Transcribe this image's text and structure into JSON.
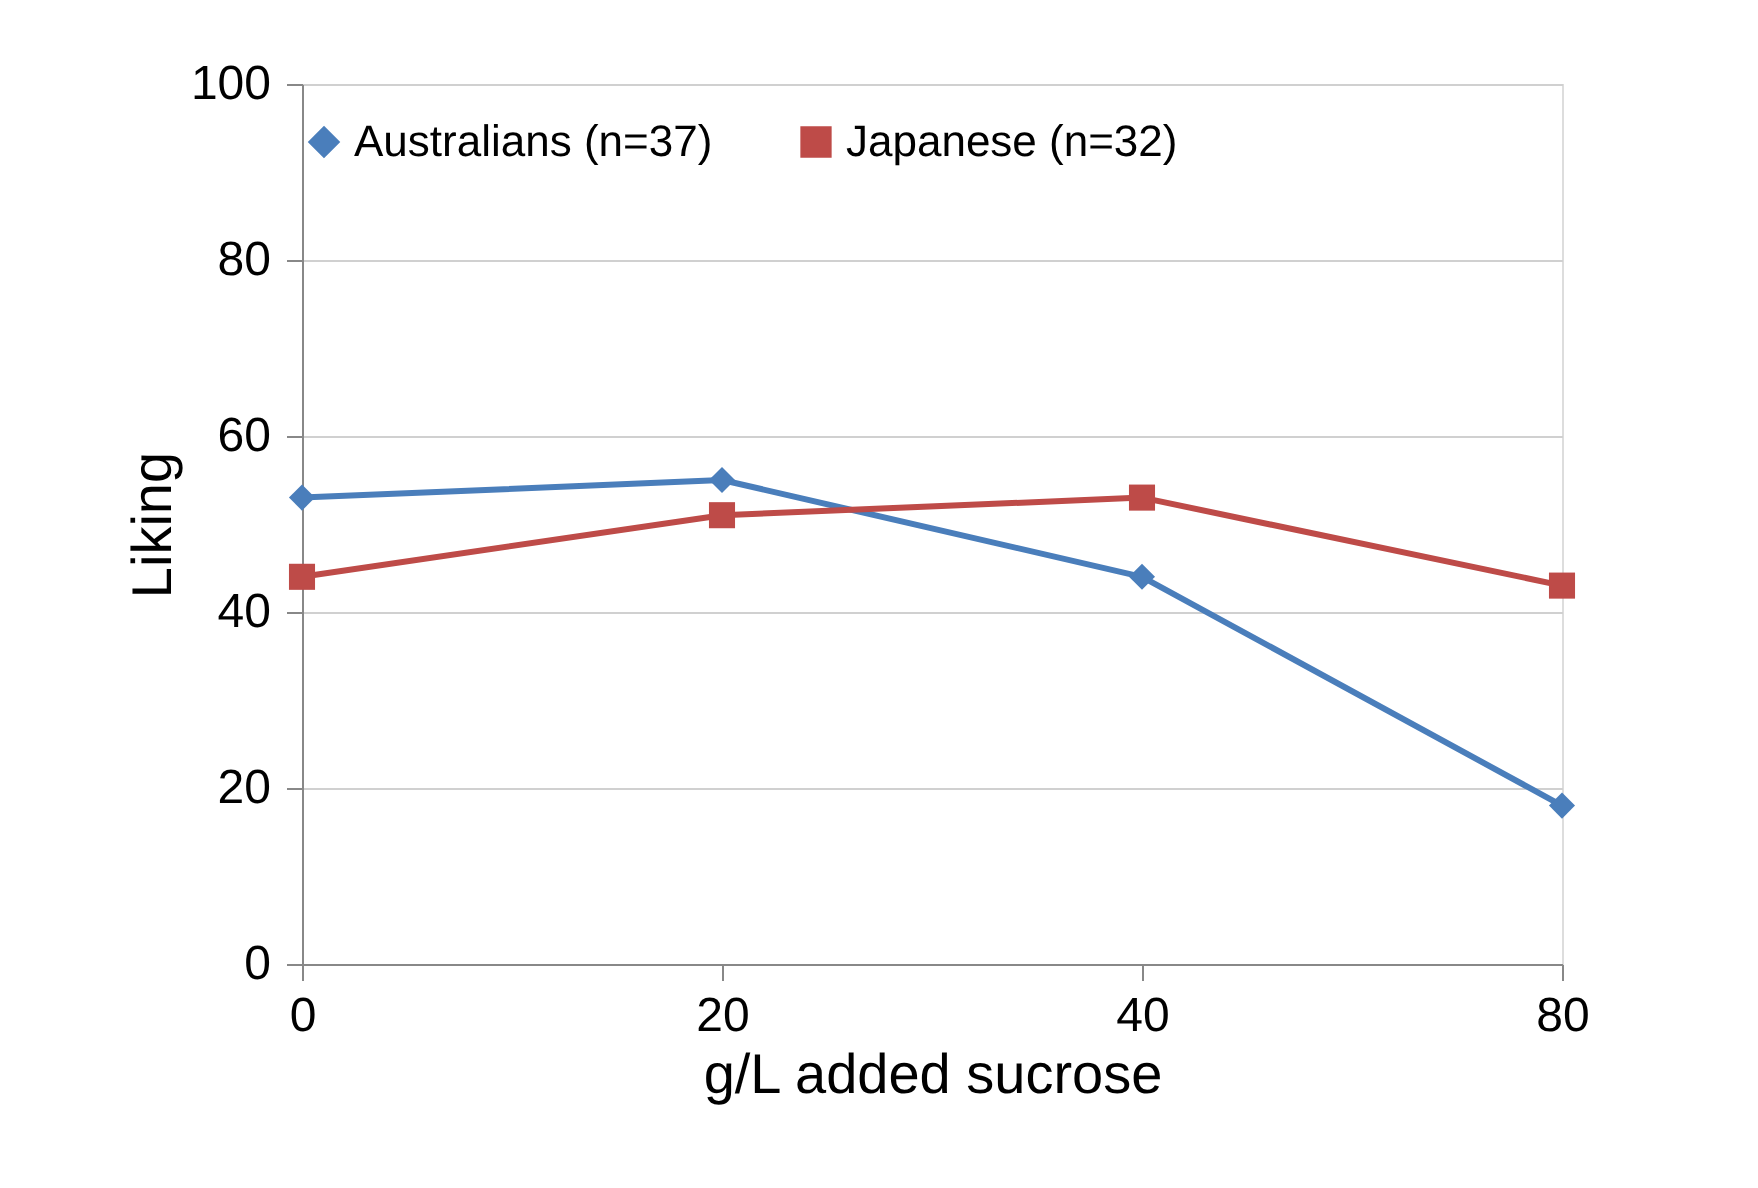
{
  "chart_data": {
    "type": "line",
    "xlabel": "g/L added sucrose",
    "ylabel": "Liking",
    "categories": [
      "0",
      "20",
      "40",
      "80"
    ],
    "series": [
      {
        "name": "Australians (n=37)",
        "color": "#4a7ebb",
        "marker": "diamond",
        "values": [
          53,
          55,
          44,
          18
        ]
      },
      {
        "name": "Japanese (n=32)",
        "color": "#be4b48",
        "marker": "square",
        "values": [
          44,
          51,
          53,
          43
        ]
      }
    ],
    "ylim": [
      0,
      100
    ],
    "yticks": [
      0,
      20,
      40,
      60,
      80,
      100
    ],
    "grid": "y",
    "legend": "top",
    "line_style": "solid"
  }
}
